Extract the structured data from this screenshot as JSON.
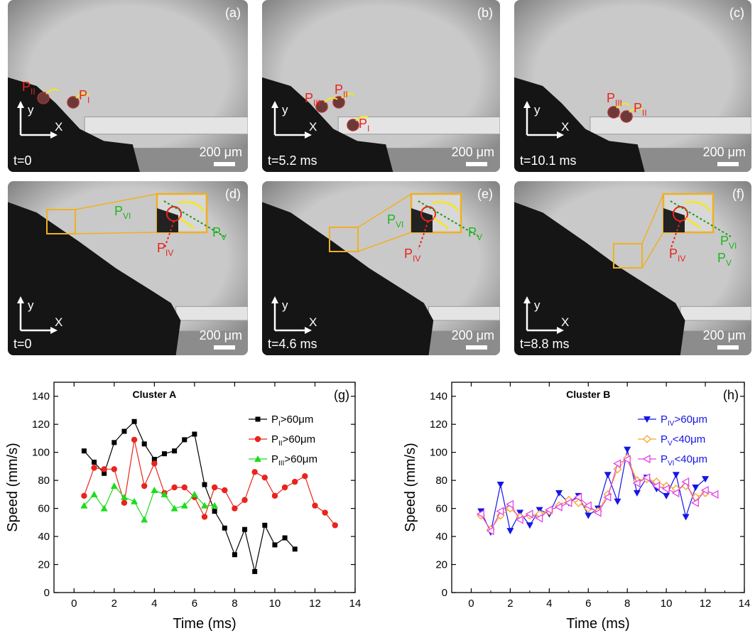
{
  "photos": [
    {
      "id": "a",
      "letter": "(a)",
      "time": "t=0",
      "scale": "200 μm",
      "labels": [
        {
          "text": "P",
          "sub": "II",
          "color": "red"
        },
        {
          "text": "P",
          "sub": "I",
          "color": "red"
        }
      ]
    },
    {
      "id": "b",
      "letter": "(b)",
      "time": "t=5.2 ms",
      "scale": "200 μm",
      "labels": [
        {
          "text": "P",
          "sub": "III",
          "color": "red"
        },
        {
          "text": "P",
          "sub": "II",
          "color": "red"
        },
        {
          "text": "P",
          "sub": "I",
          "color": "red"
        }
      ]
    },
    {
      "id": "c",
      "letter": "(c)",
      "time": "t=10.1 ms",
      "scale": "200 μm",
      "labels": [
        {
          "text": "P",
          "sub": "III",
          "color": "red"
        },
        {
          "text": "P",
          "sub": "II",
          "color": "red"
        }
      ]
    },
    {
      "id": "d",
      "letter": "(d)",
      "time": "t=0",
      "scale": "200 μm",
      "labels": [
        {
          "text": "P",
          "sub": "VI",
          "color": "green"
        },
        {
          "text": "P",
          "sub": "IV",
          "color": "red"
        },
        {
          "text": "P",
          "sub": "V",
          "color": "green"
        }
      ]
    },
    {
      "id": "e",
      "letter": "(e)",
      "time": "t=4.6 ms",
      "scale": "200 μm",
      "labels": [
        {
          "text": "P",
          "sub": "VI",
          "color": "green"
        },
        {
          "text": "P",
          "sub": "IV",
          "color": "red"
        },
        {
          "text": "P",
          "sub": "V",
          "color": "green"
        }
      ]
    },
    {
      "id": "f",
      "letter": "(f)",
      "time": "t=8.8 ms",
      "scale": "200 μm",
      "labels": [
        {
          "text": "P",
          "sub": "IV",
          "color": "red"
        },
        {
          "text": "P",
          "sub": "V",
          "color": "green"
        },
        {
          "text": "P",
          "sub": "VI",
          "color": "green"
        }
      ]
    }
  ],
  "axis_labels": {
    "x": "x",
    "y": "y"
  },
  "chart_data": [
    {
      "type": "line",
      "panel": "(g)",
      "title": "Cluster A",
      "xlabel": "Time (ms)",
      "ylabel": "Speed (mm/s)",
      "xlim": [
        -1,
        14
      ],
      "ylim": [
        0,
        150
      ],
      "xticks": [
        0,
        2,
        4,
        6,
        8,
        10,
        12,
        14
      ],
      "yticks": [
        0,
        20,
        40,
        60,
        80,
        100,
        120,
        140
      ],
      "legend_position": "top-right",
      "series": [
        {
          "name": "P",
          "name_sub": "I",
          "name_suffix": ">60μm",
          "color": "#000000",
          "marker": "square",
          "x": [
            0.5,
            1,
            1.5,
            2,
            2.5,
            3,
            3.5,
            4,
            4.5,
            5,
            5.5,
            6,
            6.5,
            7,
            7.5,
            8,
            8.5,
            9,
            9.5,
            10,
            10.5,
            11
          ],
          "y": [
            101,
            93,
            85,
            107,
            115,
            122,
            106,
            95,
            99,
            101,
            109,
            113,
            77,
            58,
            46,
            27,
            45,
            15,
            48,
            34,
            39,
            31
          ]
        },
        {
          "name": "P",
          "name_sub": "II",
          "name_suffix": ">60μm",
          "color": "#e8241c",
          "marker": "circle",
          "x": [
            0.5,
            1,
            1.5,
            2,
            2.5,
            3,
            3.5,
            4,
            4.5,
            5,
            5.5,
            6,
            6.5,
            7,
            7.5,
            8,
            8.5,
            9,
            9.5,
            10,
            10.5,
            11,
            11.5,
            12,
            12.5,
            13
          ],
          "y": [
            69,
            89,
            88,
            88,
            64,
            109,
            76,
            92,
            71,
            75,
            75,
            68,
            54,
            75,
            73,
            60,
            66,
            86,
            82,
            69,
            75,
            79,
            83,
            62,
            57,
            48
          ]
        },
        {
          "name": "P",
          "name_sub": "III",
          "name_suffix": ">60μm",
          "color": "#1ddb1d",
          "marker": "triangle-up",
          "x": [
            0.5,
            1,
            1.5,
            2,
            2.5,
            3,
            3.5,
            4,
            4.5,
            5,
            5.5,
            6,
            6.5,
            7
          ],
          "y": [
            62,
            70,
            60,
            76,
            68,
            65,
            52,
            73,
            70,
            60,
            62,
            70,
            62,
            62
          ]
        }
      ]
    },
    {
      "type": "line",
      "panel": "(h)",
      "title": "Cluster B",
      "xlabel": "Time (ms)",
      "ylabel": "Speed (mm/s)",
      "xlim": [
        -1,
        14
      ],
      "ylim": [
        0,
        150
      ],
      "xticks": [
        0,
        2,
        4,
        6,
        8,
        10,
        12,
        14
      ],
      "yticks": [
        0,
        20,
        40,
        60,
        80,
        100,
        120,
        140
      ],
      "legend_position": "top-right",
      "series": [
        {
          "name": "P",
          "name_sub": "IV",
          "name_suffix": ">60μm",
          "color": "#1515e6",
          "marker": "triangle-down",
          "x": [
            0.5,
            1,
            1.5,
            2,
            2.5,
            3,
            3.5,
            4,
            4.5,
            5,
            5.5,
            6,
            6.5,
            7,
            7.5,
            8,
            8.5,
            9,
            9.5,
            10,
            10.5,
            11,
            11.5,
            12
          ],
          "y": [
            58,
            43,
            77,
            44,
            57,
            48,
            59,
            56,
            71,
            64,
            69,
            55,
            60,
            84,
            65,
            102,
            71,
            82,
            74,
            69,
            84,
            54,
            75,
            81
          ]
        },
        {
          "name": "P",
          "name_sub": "V",
          "name_suffix": "<40μm",
          "color": "#f5a623",
          "marker": "diamond-open",
          "x": [
            0.5,
            1,
            1.5,
            2,
            2.5,
            3,
            3.5,
            4,
            4.5,
            5,
            5.5,
            6,
            6.5,
            7,
            7.5,
            8,
            8.5,
            9,
            9.5,
            10,
            10.5,
            11,
            11.5,
            12
          ],
          "y": [
            55,
            45,
            55,
            60,
            54,
            55,
            56,
            58,
            62,
            66,
            64,
            60,
            58,
            70,
            88,
            96,
            80,
            81,
            79,
            76,
            74,
            76,
            68,
            71
          ]
        },
        {
          "name": "P",
          "name_sub": "VI",
          "name_suffix": "<40μm",
          "color": "#e542e5",
          "marker": "triangle-left-open",
          "x": [
            0.5,
            1,
            1.5,
            2,
            2.5,
            3,
            3.5,
            4,
            4.5,
            5,
            5.5,
            6,
            6.5,
            7,
            7.5,
            8,
            8.5,
            9,
            9.5,
            10,
            10.5,
            11,
            11.5,
            12,
            12.5
          ],
          "y": [
            56,
            44,
            58,
            63,
            52,
            56,
            53,
            59,
            61,
            64,
            68,
            62,
            57,
            68,
            92,
            95,
            78,
            82,
            76,
            74,
            71,
            79,
            64,
            73,
            70
          ]
        }
      ]
    }
  ]
}
